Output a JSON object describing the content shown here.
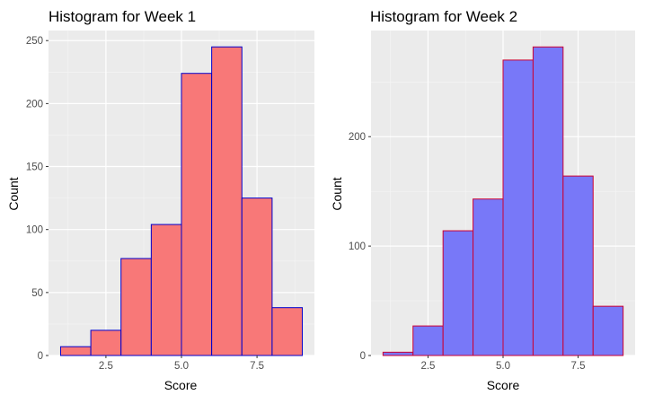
{
  "chart_data": [
    {
      "type": "bar",
      "title": "Histogram for Week 1",
      "xlabel": "Score",
      "ylabel": "Count",
      "bin_edges": [
        1,
        2,
        3,
        4,
        5,
        6,
        7,
        8,
        9
      ],
      "values": [
        7,
        20,
        77,
        104,
        224,
        245,
        125,
        38
      ],
      "xlim": [
        0.6,
        9.4
      ],
      "ylim": [
        0,
        258
      ],
      "xticks": [
        2.5,
        5.0,
        7.5
      ],
      "xtick_labels": [
        "2.5",
        "5.0",
        "7.5"
      ],
      "yticks": [
        0,
        50,
        100,
        150,
        200,
        250
      ],
      "ytick_labels": [
        "0",
        "50",
        "100",
        "150",
        "200",
        "250"
      ],
      "bar_fill": "#f87878",
      "bar_stroke": "#0000cc",
      "panel_background": "#ebebeb",
      "grid": true
    },
    {
      "type": "bar",
      "title": "Histogram for Week 2",
      "xlabel": "Score",
      "ylabel": "Count",
      "bin_edges": [
        1,
        2,
        3,
        4,
        5,
        6,
        7,
        8,
        9
      ],
      "values": [
        3,
        27,
        114,
        143,
        270,
        282,
        164,
        45
      ],
      "xlim": [
        0.6,
        9.4
      ],
      "ylim": [
        0,
        297
      ],
      "xticks": [
        2.5,
        5.0,
        7.5
      ],
      "xtick_labels": [
        "2.5",
        "5.0",
        "7.5"
      ],
      "yticks": [
        0,
        100,
        200
      ],
      "ytick_labels": [
        "0",
        "100",
        "200"
      ],
      "bar_fill": "#7878f8",
      "bar_stroke": "#cc0033",
      "panel_background": "#ebebeb",
      "grid": true
    }
  ]
}
